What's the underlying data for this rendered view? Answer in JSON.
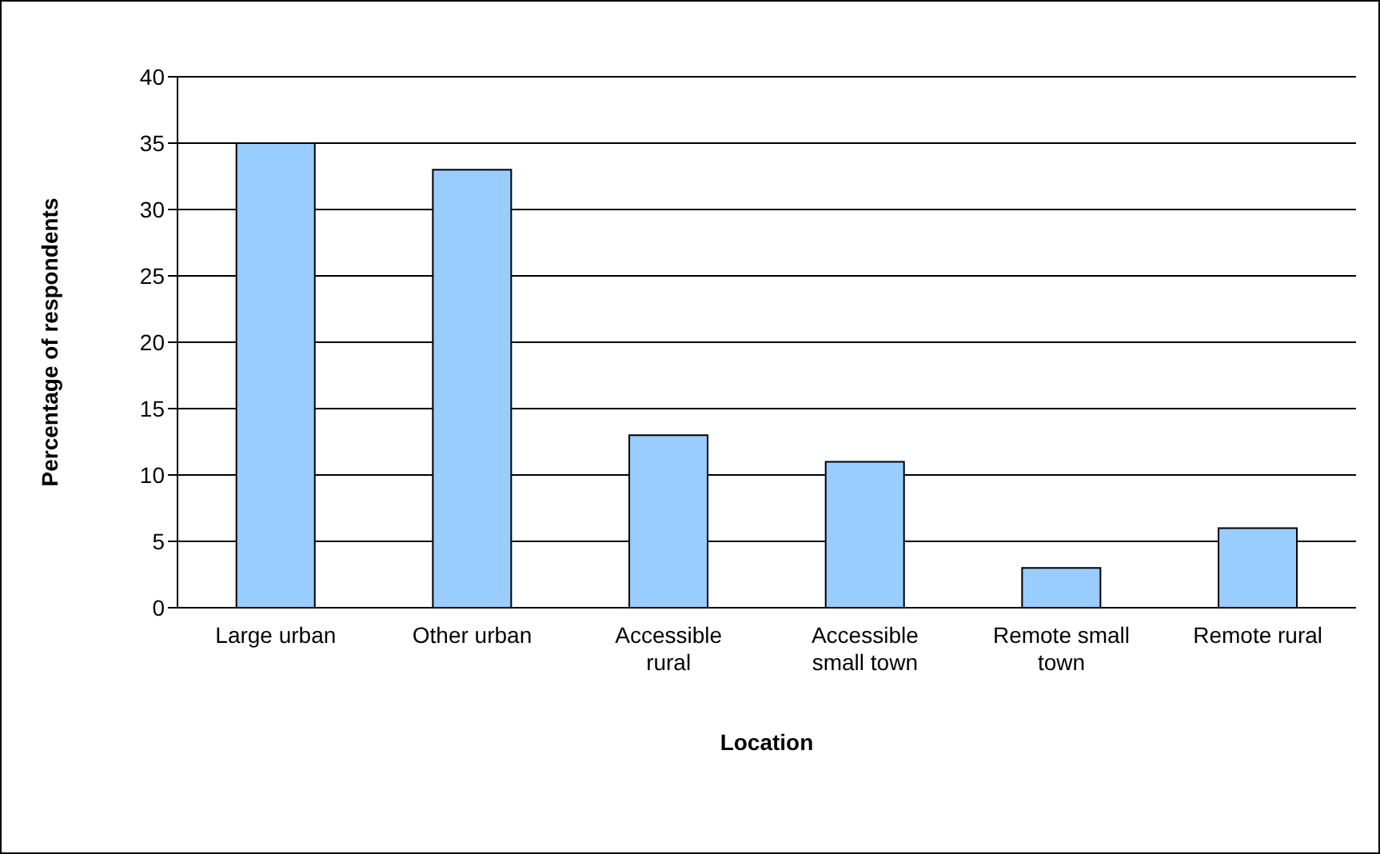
{
  "chart_data": {
    "type": "bar",
    "xlabel": "Location",
    "ylabel": "Percentage of respondents",
    "categories": [
      "Large urban",
      "Other urban",
      "Accessible rural",
      "Accessible small town",
      "Remote small town",
      "Remote rural"
    ],
    "values": [
      35,
      33,
      13,
      11,
      3,
      6
    ],
    "color": "#99ccff",
    "ylim": [
      0,
      40
    ],
    "yticks": [
      0,
      5,
      10,
      15,
      20,
      25,
      30,
      35,
      40
    ],
    "grid": "y"
  }
}
